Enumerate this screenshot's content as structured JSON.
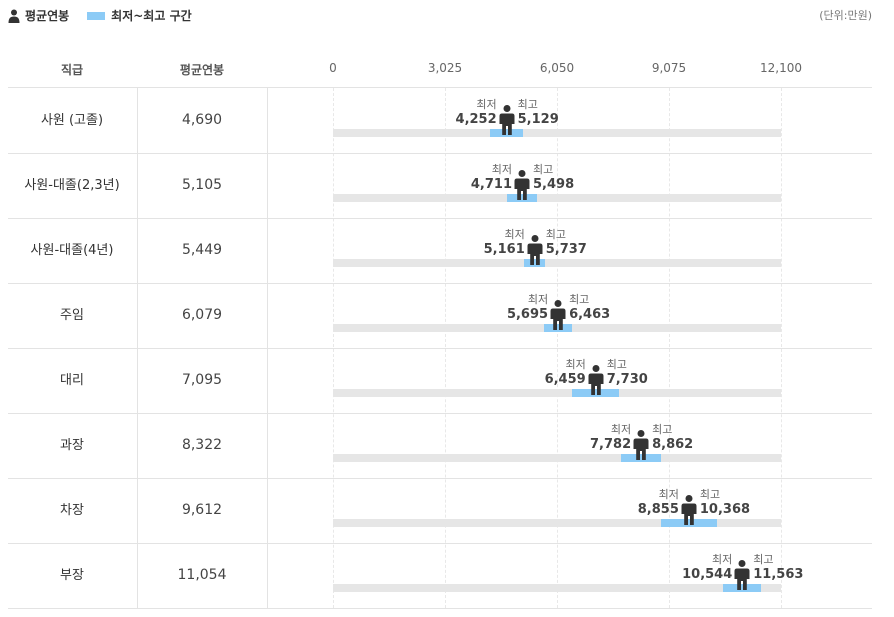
{
  "legend": {
    "avg_label": "평균연봉",
    "range_label": "최저~최고 구간"
  },
  "unit": "(단위:만원)",
  "columns": {
    "role": "직급",
    "avg": "평균연봉"
  },
  "labels": {
    "min": "최저",
    "max": "최고"
  },
  "colors": {
    "range": "#8ccbf6",
    "track": "#e6e6e6",
    "figure": "#333333"
  },
  "chart_data": {
    "type": "range",
    "axis": {
      "min": 0,
      "max": 12100,
      "ticks": [
        "0",
        "3,025",
        "6,050",
        "9,075",
        "12,100"
      ]
    },
    "rows": [
      {
        "title": "사원 (고졸)",
        "avg": 4690,
        "avg_text": "4,690",
        "min": 4252,
        "min_text": "4,252",
        "max": 5129,
        "max_text": "5,129"
      },
      {
        "title": "사원-대졸(2,3년)",
        "avg": 5105,
        "avg_text": "5,105",
        "min": 4711,
        "min_text": "4,711",
        "max": 5498,
        "max_text": "5,498"
      },
      {
        "title": "사원-대졸(4년)",
        "avg": 5449,
        "avg_text": "5,449",
        "min": 5161,
        "min_text": "5,161",
        "max": 5737,
        "max_text": "5,737"
      },
      {
        "title": "주임",
        "avg": 6079,
        "avg_text": "6,079",
        "min": 5695,
        "min_text": "5,695",
        "max": 6463,
        "max_text": "6,463"
      },
      {
        "title": "대리",
        "avg": 7095,
        "avg_text": "7,095",
        "min": 6459,
        "min_text": "6,459",
        "max": 7730,
        "max_text": "7,730"
      },
      {
        "title": "과장",
        "avg": 8322,
        "avg_text": "8,322",
        "min": 7782,
        "min_text": "7,782",
        "max": 8862,
        "max_text": "8,862"
      },
      {
        "title": "차장",
        "avg": 9612,
        "avg_text": "9,612",
        "min": 8855,
        "min_text": "8,855",
        "max": 10368,
        "max_text": "10,368"
      },
      {
        "title": "부장",
        "avg": 11054,
        "avg_text": "11,054",
        "min": 10544,
        "min_text": "10,544",
        "max": 11563,
        "max_text": "11,563"
      }
    ]
  }
}
